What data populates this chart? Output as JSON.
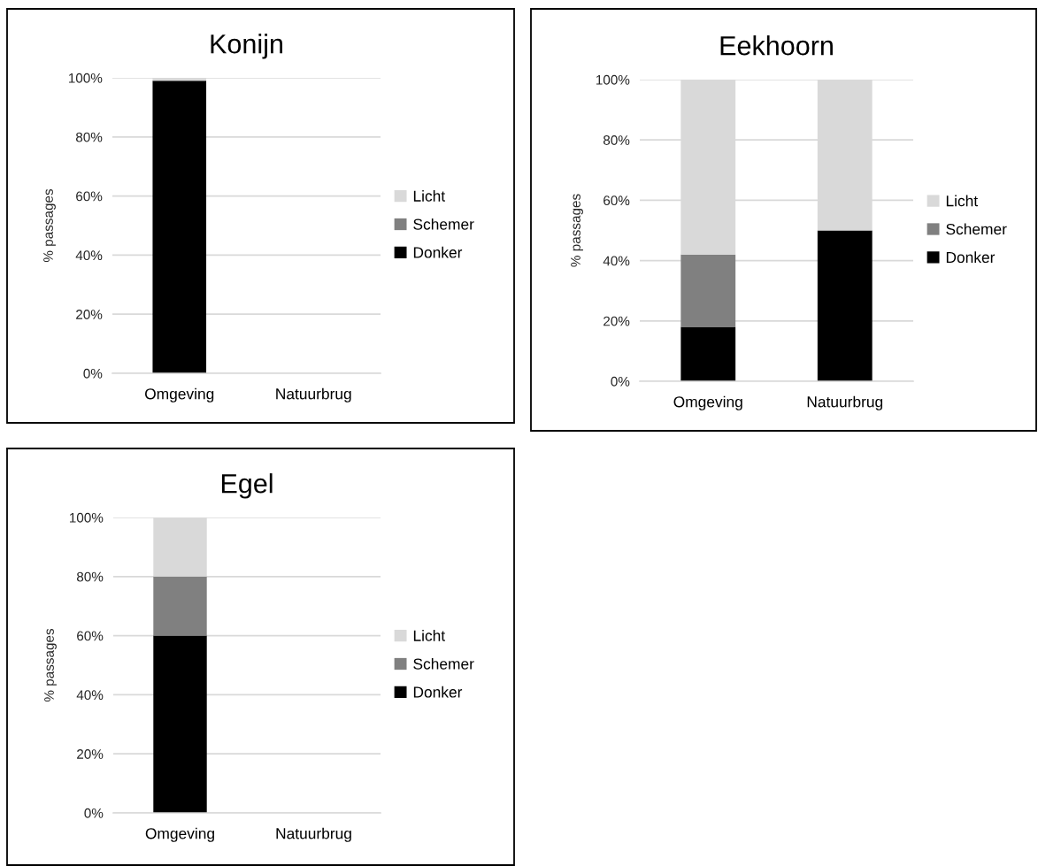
{
  "chart_data": [
    {
      "type": "bar",
      "title": "Konijn",
      "ylabel": "% passages",
      "categories": [
        "Omgeving",
        "Natuurbrug"
      ],
      "stacked": true,
      "series": [
        {
          "name": "Donker",
          "color": "#000000",
          "values": [
            99,
            null
          ]
        },
        {
          "name": "Schemer",
          "color": "#808080",
          "values": [
            0,
            null
          ]
        },
        {
          "name": "Licht",
          "color": "#d9d9d9",
          "values": [
            1,
            null
          ]
        }
      ],
      "ylim": [
        0,
        100
      ],
      "yticks": [
        {
          "value": 0,
          "label": "0%"
        },
        {
          "value": 20,
          "label": "20%"
        },
        {
          "value": 40,
          "label": "40%"
        },
        {
          "value": 60,
          "label": "60%"
        },
        {
          "value": 80,
          "label": "80%"
        },
        {
          "value": 100,
          "label": "100%"
        }
      ],
      "grid": "y",
      "legend": "right"
    },
    {
      "type": "bar",
      "title": "Eekhoorn",
      "ylabel": "% passages",
      "categories": [
        "Omgeving",
        "Natuurbrug"
      ],
      "stacked": true,
      "series": [
        {
          "name": "Donker",
          "color": "#000000",
          "values": [
            18,
            50
          ]
        },
        {
          "name": "Schemer",
          "color": "#808080",
          "values": [
            24,
            0
          ]
        },
        {
          "name": "Licht",
          "color": "#d9d9d9",
          "values": [
            58,
            50
          ]
        }
      ],
      "ylim": [
        0,
        100
      ],
      "yticks": [
        {
          "value": 0,
          "label": "0%"
        },
        {
          "value": 20,
          "label": "20%"
        },
        {
          "value": 40,
          "label": "40%"
        },
        {
          "value": 60,
          "label": "60%"
        },
        {
          "value": 80,
          "label": "80%"
        },
        {
          "value": 100,
          "label": "100%"
        }
      ],
      "grid": "y",
      "legend": "right"
    },
    {
      "type": "bar",
      "title": "Egel",
      "ylabel": "% passages",
      "categories": [
        "Omgeving",
        "Natuurbrug"
      ],
      "stacked": true,
      "series": [
        {
          "name": "Donker",
          "color": "#000000",
          "values": [
            60,
            null
          ]
        },
        {
          "name": "Schemer",
          "color": "#808080",
          "values": [
            20,
            null
          ]
        },
        {
          "name": "Licht",
          "color": "#d9d9d9",
          "values": [
            20,
            null
          ]
        }
      ],
      "ylim": [
        0,
        100
      ],
      "yticks": [
        {
          "value": 0,
          "label": "0%"
        },
        {
          "value": 20,
          "label": "20%"
        },
        {
          "value": 40,
          "label": "40%"
        },
        {
          "value": 60,
          "label": "60%"
        },
        {
          "value": 80,
          "label": "80%"
        },
        {
          "value": 100,
          "label": "100%"
        }
      ],
      "grid": "y",
      "legend": "right"
    }
  ]
}
